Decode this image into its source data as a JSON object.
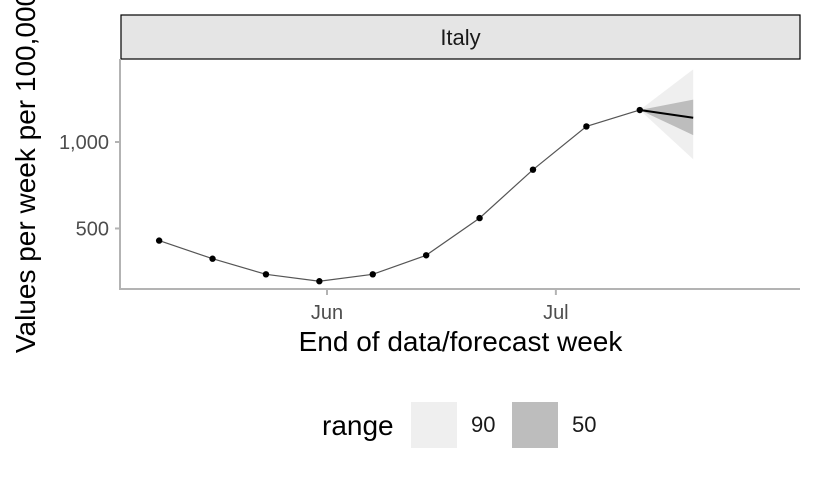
{
  "chart_data": {
    "type": "line",
    "panel": "Italy",
    "xlabel": "End of data/forecast week",
    "ylabel": "Values per week per 100,000",
    "x_ticks": [
      "Jun",
      "Jul"
    ],
    "x_tick_dates": [
      "2020-06-01",
      "2020-07-01"
    ],
    "y_ticks": [
      500,
      1000
    ],
    "y_tick_labels": [
      "500",
      "1,000"
    ],
    "ylim": [
      150,
      1480
    ],
    "xlim": [
      "2020-05-05",
      "2020-08-02"
    ],
    "series": [
      {
        "name": "data",
        "color": "#555555",
        "x": [
          "2020-05-10",
          "2020-05-17",
          "2020-05-24",
          "2020-05-31",
          "2020-06-07",
          "2020-06-14",
          "2020-06-21",
          "2020-06-28",
          "2020-07-05",
          "2020-07-12"
        ],
        "values": [
          430,
          325,
          235,
          195,
          235,
          345,
          560,
          840,
          1090,
          1185
        ]
      }
    ],
    "forecast": {
      "x": [
        "2020-07-12",
        "2020-07-19"
      ],
      "median": [
        1185,
        1140
      ],
      "q50_lower": [
        1185,
        1040
      ],
      "q50_upper": [
        1185,
        1245
      ],
      "q90_lower": [
        1185,
        900
      ],
      "q90_upper": [
        1185,
        1420
      ]
    },
    "legend": {
      "title": "range",
      "position": "bottom",
      "items": [
        {
          "label": "90",
          "color": "#efefef"
        },
        {
          "label": "50",
          "color": "#bdbdbd"
        }
      ]
    },
    "grid": false
  }
}
